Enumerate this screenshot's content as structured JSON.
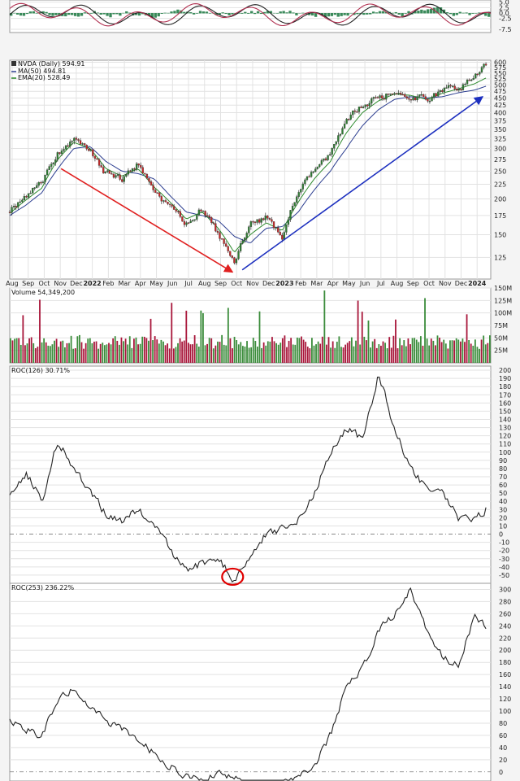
{
  "colors": {
    "background": "#ffffff",
    "frame": "#9a9a9a",
    "grid": "#e2e2e2",
    "price": "#222222",
    "up_candle": "#2e7d32",
    "down_candle": "#c62828",
    "ma50": "#2c3e90",
    "ema20": "#2e8b2e",
    "volume_up": "#3b8c3b",
    "volume_down": "#a8163a",
    "down_arrow": "#e02020",
    "up_arrow": "#1c2fbf",
    "highlight_circle": "#e00000",
    "osc_line": "#222222",
    "osc_signal": "#b03050",
    "osc_hist": "#3a8a5a"
  },
  "chart_data": [
    {
      "type": "line",
      "panel": "oscillator",
      "y_ticks": [
        5.0,
        2.5,
        0.0,
        -2.5,
        -7.5
      ],
      "y_tick_labels": [
        "5.0",
        "2.5",
        "0.0",
        "-2.5",
        "-7.5"
      ]
    },
    {
      "type": "line",
      "panel": "price",
      "scale": "log",
      "ylim": [
        105,
        610
      ],
      "legend": [
        {
          "label": "NVDA (Daily) 594.91",
          "icon": "candle-icon"
        },
        {
          "label": "MA(50) 494.81",
          "color": "#2c3e90"
        },
        {
          "label": "EMA(20) 528.49",
          "color": "#2e8b2e"
        }
      ],
      "y_ticks": [
        600,
        575,
        550,
        525,
        500,
        475,
        450,
        425,
        400,
        375,
        350,
        325,
        300,
        275,
        250,
        225,
        200,
        175,
        150,
        125
      ],
      "x_tick_labels": [
        "Aug",
        "Sep",
        "Oct",
        "Nov",
        "Dec",
        "2022",
        "Feb",
        "Mar",
        "Apr",
        "May",
        "Jun",
        "Jul",
        "Aug",
        "Sep",
        "Oct",
        "Nov",
        "Dec",
        "2023",
        "Feb",
        "Mar",
        "Apr",
        "May",
        "Jun",
        "Jul",
        "Aug",
        "Sep",
        "Oct",
        "Nov",
        "Dec",
        "2024"
      ],
      "x": [
        0,
        1,
        2,
        3,
        4,
        5,
        6,
        7,
        8,
        9,
        10,
        11,
        12,
        13,
        14,
        15,
        16,
        17,
        18,
        19,
        20,
        21,
        22,
        23,
        24,
        25,
        26,
        27,
        28,
        29,
        29.7
      ],
      "series": [
        {
          "name": "NVDA",
          "values": [
            180,
            205,
            225,
            290,
            325,
            295,
            245,
            235,
            265,
            210,
            185,
            165,
            185,
            150,
            118,
            162,
            172,
            148,
            210,
            250,
            285,
            380,
            425,
            455,
            470,
            460,
            440,
            475,
            490,
            530,
            594.91
          ]
        },
        {
          "name": "MA(50)",
          "values": [
            175,
            190,
            210,
            255,
            300,
            305,
            270,
            250,
            245,
            235,
            205,
            180,
            175,
            168,
            148,
            140,
            158,
            160,
            180,
            215,
            250,
            300,
            360,
            410,
            445,
            455,
            450,
            455,
            470,
            480,
            494.81
          ]
        },
        {
          "name": "EMA(20)",
          "values": [
            178,
            198,
            218,
            275,
            315,
            300,
            255,
            240,
            255,
            220,
            195,
            170,
            180,
            158,
            130,
            150,
            165,
            155,
            195,
            235,
            270,
            340,
            400,
            440,
            465,
            460,
            445,
            468,
            485,
            505,
            528.49
          ]
        }
      ],
      "annotations": [
        {
          "type": "arrow",
          "from": [
            3.2,
            255
          ],
          "to": [
            13.9,
            111
          ],
          "color": "down_arrow"
        },
        {
          "type": "arrow",
          "from": [
            14.5,
            113
          ],
          "to": [
            29.5,
            455
          ],
          "color": "up_arrow"
        }
      ]
    },
    {
      "type": "bar",
      "panel": "volume",
      "legend": [
        {
          "label": "Volume 54,349,200"
        }
      ],
      "ylim": [
        0,
        150
      ],
      "y_ticks": [
        150,
        125,
        100,
        75,
        50,
        25
      ],
      "y_tick_labels": [
        "150M",
        "125M",
        "100M",
        "75M",
        "50M",
        "25M"
      ]
    },
    {
      "type": "line",
      "panel": "roc126",
      "legend": [
        {
          "label": "ROC(126) 30.71%"
        }
      ],
      "ylim": [
        -60,
        205
      ],
      "y_ticks": [
        200,
        190,
        180,
        170,
        160,
        150,
        140,
        130,
        120,
        110,
        100,
        90,
        80,
        70,
        60,
        50,
        40,
        30,
        20,
        10,
        0,
        -10,
        -20,
        -30,
        -40,
        -50
      ],
      "x": [
        0,
        1,
        2,
        3,
        4,
        5,
        6,
        7,
        8,
        9,
        10,
        11,
        12,
        13,
        14,
        15,
        16,
        17,
        18,
        19,
        20,
        21,
        22,
        23,
        24,
        25,
        26,
        27,
        28,
        29,
        29.7
      ],
      "values": [
        45,
        75,
        40,
        115,
        80,
        50,
        25,
        15,
        30,
        10,
        -20,
        -45,
        -35,
        -30,
        -55,
        -25,
        0,
        5,
        20,
        50,
        100,
        130,
        115,
        195,
        130,
        80,
        55,
        50,
        20,
        15,
        30.71
      ],
      "annotations": [
        {
          "type": "circle",
          "at": [
            13.9,
            -52
          ],
          "color": "highlight_circle"
        }
      ]
    },
    {
      "type": "line",
      "panel": "roc253",
      "legend": [
        {
          "label": "ROC(253) 236.22%"
        }
      ],
      "ylim": [
        -15,
        310
      ],
      "y_ticks": [
        300,
        280,
        260,
        240,
        220,
        200,
        180,
        160,
        140,
        120,
        100,
        80,
        60,
        40,
        20,
        0
      ],
      "x": [
        0,
        1,
        2,
        3,
        4,
        5,
        6,
        7,
        8,
        9,
        10,
        11,
        12,
        13,
        14,
        15,
        16,
        17,
        18,
        19,
        20,
        21,
        22,
        23,
        24,
        25,
        26,
        27,
        28,
        29,
        29.7
      ],
      "values": [
        85,
        70,
        60,
        120,
        140,
        110,
        80,
        70,
        55,
        30,
        10,
        -5,
        -10,
        -5,
        -12,
        -20,
        -25,
        -20,
        -8,
        10,
        60,
        140,
        170,
        230,
        260,
        300,
        230,
        190,
        175,
        260,
        236.22
      ]
    }
  ]
}
